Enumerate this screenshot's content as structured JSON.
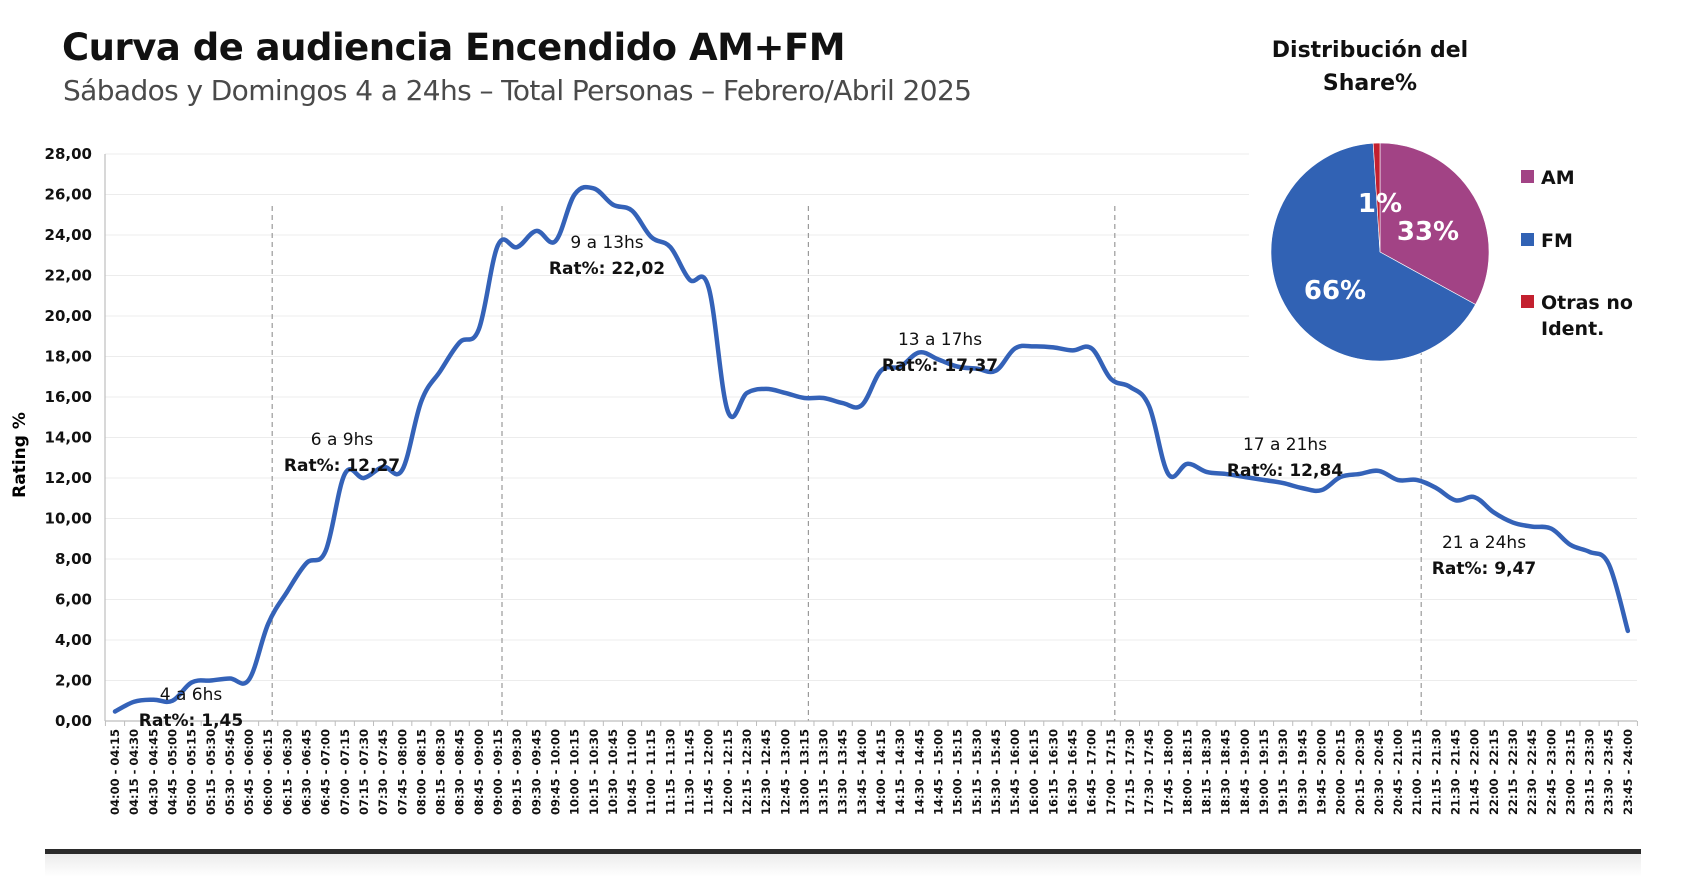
{
  "header": {
    "title": "Curva de audiencia Encendido AM+FM",
    "subtitle": "Sábados y Domingos 4 a 24hs – Total Personas – Febrero/Abril 2025"
  },
  "chart_data": [
    {
      "type": "line",
      "title": "Curva de audiencia Encendido AM+FM",
      "xlabel": "",
      "ylabel": "Rating %",
      "ylim": [
        0,
        28
      ],
      "yticks": [
        "0,00",
        "2,00",
        "4,00",
        "6,00",
        "8,00",
        "10,00",
        "12,00",
        "14,00",
        "16,00",
        "18,00",
        "20,00",
        "22,00",
        "24,00",
        "26,00",
        "28,00"
      ],
      "grid": true,
      "color": "#3462B8",
      "categories": [
        "04:00 - 04:15",
        "04:15 - 04:30",
        "04:30 - 04:45",
        "04:45 - 05:00",
        "05:00 - 05:15",
        "05:15 - 05:30",
        "05:30 - 05:45",
        "05:45 - 06:00",
        "06:00 - 06:15",
        "06:15 - 06:30",
        "06:30 - 06:45",
        "06:45 - 07:00",
        "07:00 - 07:15",
        "07:15 - 07:30",
        "07:30 - 07:45",
        "07:45 - 08:00",
        "08:00 - 08:15",
        "08:15 - 08:30",
        "08:30 - 08:45",
        "08:45 - 09:00",
        "09:00 - 09:15",
        "09:15 - 09:30",
        "09:30 - 09:45",
        "09:45 - 10:00",
        "10:00 - 10:15",
        "10:15 - 10:30",
        "10:30 - 10:45",
        "10:45 - 11:00",
        "11:00 - 11:15",
        "11:15 - 11:30",
        "11:30 - 11:45",
        "11:45 - 12:00",
        "12:00 - 12:15",
        "12:15 - 12:30",
        "12:30 - 12:45",
        "12:45 - 13:00",
        "13:00 - 13:15",
        "13:15 - 13:30",
        "13:30 - 13:45",
        "13:45 - 14:00",
        "14:00 - 14:15",
        "14:15 - 14:30",
        "14:30 - 14:45",
        "14:45 - 15:00",
        "15:00 - 15:15",
        "15:15 - 15:30",
        "15:30 - 15:45",
        "15:45 - 16:00",
        "16:00 - 16:15",
        "16:15 - 16:30",
        "16:30 - 16:45",
        "16:45 - 17:00",
        "17:00 - 17:15",
        "17:15 - 17:30",
        "17:30 - 17:45",
        "17:45 - 18:00",
        "18:00 - 18:15",
        "18:15 - 18:30",
        "18:30 - 18:45",
        "18:45 - 19:00",
        "19:00 - 19:15",
        "19:15 - 19:30",
        "19:30 - 19:45",
        "19:45 - 20:00",
        "20:00 - 20:15",
        "20:15 - 20:30",
        "20:30 - 20:45",
        "20:45 - 21:00",
        "21:00 - 21:15",
        "21:15 - 21:30",
        "21:30 - 21:45",
        "21:45 - 22:00",
        "22:00 - 22:15",
        "22:15 - 22:30",
        "22:30 - 22:45",
        "22:45 - 23:00",
        "23:00 - 23:15",
        "23:15 - 23:30",
        "23:30 - 23:45",
        "23:45 - 24:00"
      ],
      "values": [
        0.47,
        0.95,
        1.05,
        1.0,
        1.9,
        2.0,
        2.1,
        2.05,
        4.8,
        6.4,
        7.8,
        8.4,
        12.2,
        12.0,
        12.55,
        12.4,
        15.8,
        17.3,
        18.7,
        19.35,
        23.5,
        23.4,
        24.2,
        23.7,
        26.0,
        26.3,
        25.5,
        25.2,
        23.9,
        23.4,
        21.8,
        21.4,
        15.3,
        16.2,
        16.4,
        16.2,
        15.95,
        15.95,
        15.7,
        15.6,
        17.3,
        17.5,
        18.2,
        17.85,
        17.5,
        17.4,
        17.3,
        18.4,
        18.5,
        18.45,
        18.3,
        18.4,
        16.9,
        16.5,
        15.55,
        12.2,
        12.7,
        12.3,
        12.2,
        12.05,
        11.9,
        11.75,
        11.5,
        11.4,
        12.05,
        12.2,
        12.35,
        11.9,
        11.9,
        11.5,
        10.9,
        11.05,
        10.3,
        9.8,
        9.6,
        9.5,
        8.7,
        8.35,
        7.75,
        4.45
      ],
      "period_boundaries": [
        8,
        20,
        36,
        52,
        68
      ],
      "annotations": [
        {
          "label": "4 a 6hs",
          "value_label": "Rat%: 1,45"
        },
        {
          "label": "6 a 9hs",
          "value_label": "Rat%: 12,27"
        },
        {
          "label": "9 a 13hs",
          "value_label": "Rat%: 22,02"
        },
        {
          "label": "13 a 17hs",
          "value_label": "Rat%: 17,37"
        },
        {
          "label": "17 a 21hs",
          "value_label": "Rat%: 12,84"
        },
        {
          "label": "21 a 24hs",
          "value_label": "Rat%: 9,47"
        }
      ]
    },
    {
      "type": "pie",
      "title": "Distribución del Share%",
      "title_lines": [
        "Distribución del",
        "Share%"
      ],
      "legend_placement": "right",
      "slices": [
        {
          "name": "AM",
          "value": 33,
          "label": "33%",
          "color": "#A24385"
        },
        {
          "name": "FM",
          "value": 66,
          "label": "66%",
          "color": "#3162B4"
        },
        {
          "name": "Otras no Ident.",
          "legend_lines": [
            "Otras no",
            "Ident."
          ],
          "value": 1,
          "label": "1%",
          "color": "#C3202F"
        }
      ]
    }
  ]
}
